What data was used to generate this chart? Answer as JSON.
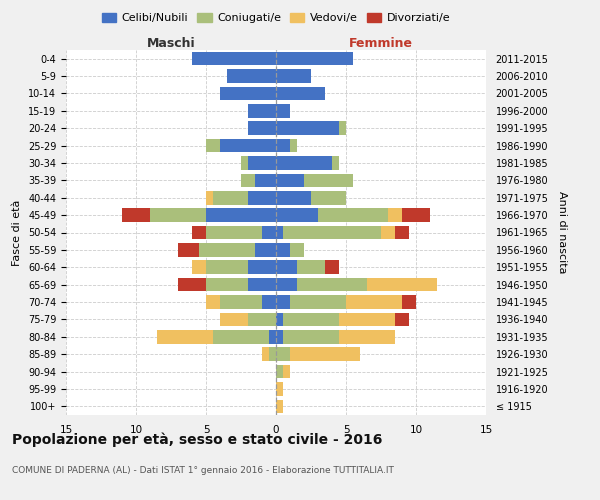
{
  "age_groups": [
    "100+",
    "95-99",
    "90-94",
    "85-89",
    "80-84",
    "75-79",
    "70-74",
    "65-69",
    "60-64",
    "55-59",
    "50-54",
    "45-49",
    "40-44",
    "35-39",
    "30-34",
    "25-29",
    "20-24",
    "15-19",
    "10-14",
    "5-9",
    "0-4"
  ],
  "birth_years": [
    "≤ 1915",
    "1916-1920",
    "1921-1925",
    "1926-1930",
    "1931-1935",
    "1936-1940",
    "1941-1945",
    "1946-1950",
    "1951-1955",
    "1956-1960",
    "1961-1965",
    "1966-1970",
    "1971-1975",
    "1976-1980",
    "1981-1985",
    "1986-1990",
    "1991-1995",
    "1996-2000",
    "2001-2005",
    "2006-2010",
    "2011-2015"
  ],
  "colors": {
    "celibe": "#4472C4",
    "coniugato": "#AABF7B",
    "vedovo": "#F0C060",
    "divorziato": "#C0392B"
  },
  "maschi": {
    "celibe": [
      0,
      0,
      0,
      0,
      0.5,
      0,
      1,
      2,
      2,
      1.5,
      1,
      5,
      2,
      1.5,
      2,
      4,
      2,
      2,
      4,
      3.5,
      6
    ],
    "coniugato": [
      0,
      0,
      0,
      0.5,
      4,
      2,
      3,
      3,
      3,
      4,
      4,
      4,
      2.5,
      1,
      0.5,
      1,
      0,
      0,
      0,
      0,
      0
    ],
    "vedovo": [
      0,
      0,
      0,
      0.5,
      4,
      2,
      1,
      0,
      1,
      0,
      0,
      0,
      0.5,
      0,
      0,
      0,
      0,
      0,
      0,
      0,
      0
    ],
    "divorziato": [
      0,
      0,
      0,
      0,
      0,
      0,
      0,
      2,
      0,
      1.5,
      1,
      2,
      0,
      0,
      0,
      0,
      0,
      0,
      0,
      0,
      0
    ]
  },
  "femmine": {
    "celibe": [
      0,
      0,
      0,
      0,
      0.5,
      0.5,
      1,
      1.5,
      1.5,
      1,
      0.5,
      3,
      2.5,
      2,
      4,
      1,
      4.5,
      1,
      3.5,
      2.5,
      5.5
    ],
    "coniugato": [
      0,
      0,
      0.5,
      1,
      4,
      4,
      4,
      5,
      2,
      1,
      7,
      5,
      2.5,
      3.5,
      0.5,
      0.5,
      0.5,
      0,
      0,
      0,
      0
    ],
    "vedovo": [
      0.5,
      0.5,
      0.5,
      5,
      4,
      4,
      4,
      5,
      0,
      0,
      1,
      1,
      0,
      0,
      0,
      0,
      0,
      0,
      0,
      0,
      0
    ],
    "divorziato": [
      0,
      0,
      0,
      0,
      0,
      1,
      1,
      0,
      1,
      0,
      1,
      2,
      0,
      0,
      0,
      0,
      0,
      0,
      0,
      0,
      0
    ]
  },
  "title": "Popolazione per età, sesso e stato civile - 2016",
  "subtitle": "COMUNE DI PADERNA (AL) - Dati ISTAT 1° gennaio 2016 - Elaborazione TUTTITALIA.IT",
  "xlabel_left": "Maschi",
  "xlabel_right": "Femmine",
  "ylabel_left": "Fasce di età",
  "ylabel_right": "Anni di nascita",
  "xlim": 15,
  "bg_color": "#f0f0f0",
  "plot_bg": "#ffffff",
  "legend_labels": [
    "Celibi/Nubili",
    "Coniugati/e",
    "Vedovi/e",
    "Divorziati/e"
  ]
}
